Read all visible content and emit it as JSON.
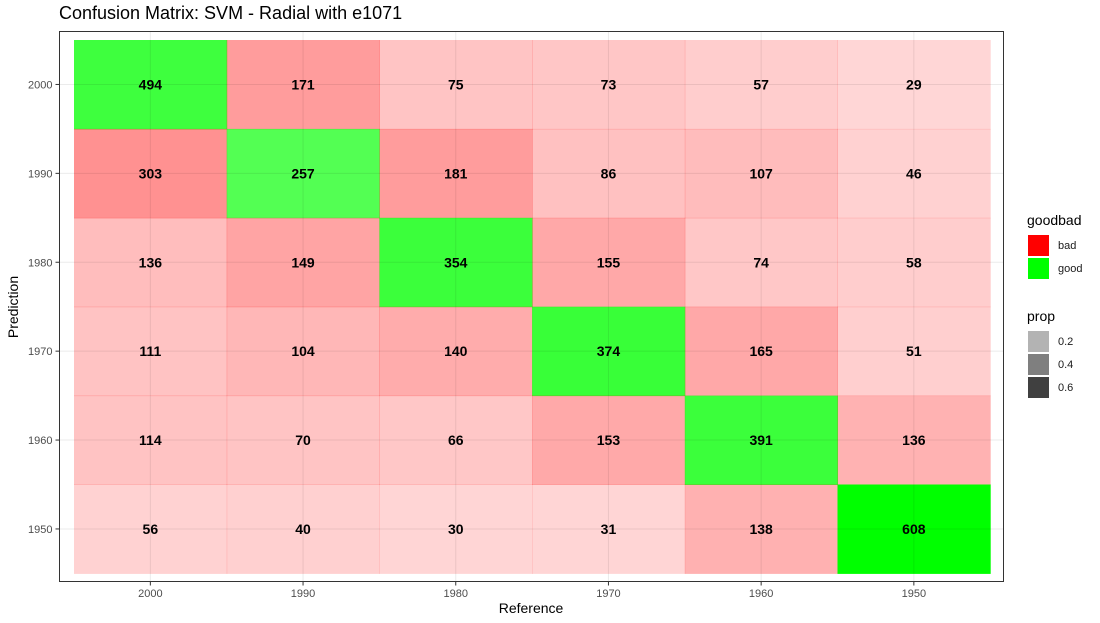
{
  "chart_data": {
    "type": "heatmap",
    "title": "Confusion Matrix: SVM - Radial with e1071",
    "xlabel": "Reference",
    "ylabel": "Prediction",
    "x_categories": [
      "2000",
      "1990",
      "1980",
      "1970",
      "1960",
      "1950"
    ],
    "y_categories": [
      "2000",
      "1990",
      "1980",
      "1970",
      "1960",
      "1950"
    ],
    "counts": [
      [
        494,
        171,
        75,
        73,
        57,
        29
      ],
      [
        303,
        257,
        181,
        86,
        107,
        46
      ],
      [
        136,
        149,
        354,
        155,
        74,
        58
      ],
      [
        111,
        104,
        140,
        374,
        165,
        51
      ],
      [
        114,
        70,
        66,
        153,
        391,
        136
      ],
      [
        56,
        40,
        30,
        31,
        138,
        608
      ]
    ],
    "grid": true,
    "legend_position": "right",
    "legends": [
      {
        "title": "goodbad",
        "entries": [
          {
            "label": "bad",
            "color": "#ff0000"
          },
          {
            "label": "good",
            "color": "#00ff00"
          }
        ]
      },
      {
        "title": "prop",
        "entries": [
          {
            "label": "0.2",
            "color": "#b3b3b3"
          },
          {
            "label": "0.4",
            "color": "#7f7f7f"
          },
          {
            "label": "0.6",
            "color": "#404040"
          }
        ]
      }
    ],
    "colors": {
      "good": "#00ff00",
      "bad": "#ff0000",
      "panel_border": "#333333",
      "grid": "#ebebeb"
    }
  }
}
